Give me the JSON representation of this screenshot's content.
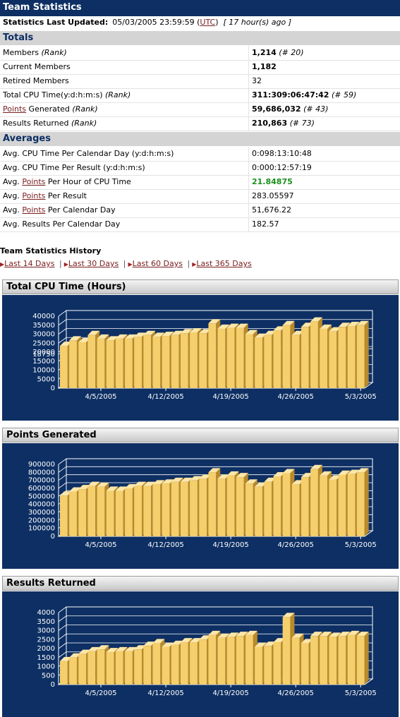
{
  "header": {
    "title": "Team Statistics"
  },
  "last_updated": {
    "label": "Statistics Last Updated:",
    "datetime": "05/03/2005 23:59:59",
    "tz_open": "(",
    "tz_link": "UTC",
    "tz_close": ")",
    "ago": "[ 17 hour(s) ago ]"
  },
  "totals": {
    "heading": "Totals",
    "rows": [
      {
        "label": "Members",
        "label_suffix": "(Rank)",
        "value": "1,214",
        "rank": "(# 20)"
      },
      {
        "label": "Current Members",
        "value": "1,182"
      },
      {
        "label": "Retired Members",
        "value": "32"
      },
      {
        "label": "Total CPU Time(y:d:h:m:s)",
        "label_suffix": "(Rank)",
        "value": "311:309:06:47:42",
        "rank": "(# 59)"
      },
      {
        "link": "Points",
        "label": " Generated",
        "label_suffix": "(Rank)",
        "value": "59,686,032",
        "rank": "(# 43)"
      },
      {
        "label": "Results Returned",
        "label_suffix": "(Rank)",
        "value": "210,863",
        "rank": "(# 73)"
      }
    ]
  },
  "averages": {
    "heading": "Averages",
    "rows": [
      {
        "label": "Avg. CPU Time Per Calendar Day (y:d:h:m:s)",
        "value": "0:098:13:10:48"
      },
      {
        "label": "Avg. CPU Time Per Result (y:d:h:m:s)",
        "value": "0:000:12:57:19"
      },
      {
        "pre": "Avg. ",
        "link": "Points",
        "post": " Per Hour of CPU Time",
        "value": "21.84875"
      },
      {
        "pre": "Avg. ",
        "link": "Points",
        "post": " Per Result",
        "value": "283.05597"
      },
      {
        "pre": "Avg. ",
        "link": "Points",
        "post": " Per Calendar Day",
        "value": "51,676.22"
      },
      {
        "label": "Avg. Results Per Calendar Day",
        "value": "182.57"
      }
    ]
  },
  "history": {
    "title": "Team Statistics History",
    "periods": [
      "Last 14 Days",
      "Last 30 Days",
      "Last 60 Days",
      "Last 365 Days"
    ],
    "separator": "|"
  },
  "colors": {
    "navy": "#0d2f63",
    "bar": "#f5cf6c",
    "bar_side": "#b98a2a",
    "bar_top": "#fde6a8",
    "link": "#7a2020",
    "highlight": "#1b8f1b"
  },
  "chart_data": [
    {
      "type": "bar",
      "title": "Total CPU Time (Hours)",
      "x": [
        "4/1/2005",
        "4/2/2005",
        "4/3/2005",
        "4/4/2005",
        "4/5/2005",
        "4/6/2005",
        "4/7/2005",
        "4/8/2005",
        "4/9/2005",
        "4/10/2005",
        "4/11/2005",
        "4/12/2005",
        "4/13/2005",
        "4/14/2005",
        "4/15/2005",
        "4/16/2005",
        "4/17/2005",
        "4/18/2005",
        "4/19/2005",
        "4/20/2005",
        "4/21/2005",
        "4/22/2005",
        "4/23/2005",
        "4/24/2005",
        "4/25/2005",
        "4/26/2005",
        "4/27/2005",
        "4/28/2005",
        "4/29/2005",
        "4/30/2005",
        "5/1/2005",
        "5/2/2005",
        "5/3/2005"
      ],
      "tick_labels": [
        "4/5/2005",
        "4/12/2005",
        "4/19/2005",
        "4/26/2005",
        "5/3/2005"
      ],
      "tick_indices": [
        4,
        11,
        18,
        25,
        32
      ],
      "values": [
        23500,
        26500,
        25500,
        29500,
        27500,
        26500,
        27500,
        27500,
        28500,
        29500,
        28500,
        29000,
        29500,
        30500,
        31000,
        30500,
        36000,
        33000,
        33500,
        33500,
        30000,
        28000,
        29500,
        32000,
        35000,
        29500,
        34000,
        37000,
        33000,
        31500,
        34000,
        34500,
        35000
      ],
      "y_ticks": [
        0,
        5000,
        10000,
        15000,
        18750,
        20000,
        25000,
        30000,
        35000,
        40000
      ],
      "ylim": [
        0,
        40000
      ],
      "grid": true,
      "legend": "none"
    },
    {
      "type": "bar",
      "title": "Points Generated",
      "x": [
        "4/1/2005",
        "4/2/2005",
        "4/3/2005",
        "4/4/2005",
        "4/5/2005",
        "4/6/2005",
        "4/7/2005",
        "4/8/2005",
        "4/9/2005",
        "4/10/2005",
        "4/11/2005",
        "4/12/2005",
        "4/13/2005",
        "4/14/2005",
        "4/15/2005",
        "4/16/2005",
        "4/17/2005",
        "4/18/2005",
        "4/19/2005",
        "4/20/2005",
        "4/21/2005",
        "4/22/2005",
        "4/23/2005",
        "4/24/2005",
        "4/25/2005",
        "4/26/2005",
        "4/27/2005",
        "4/28/2005",
        "4/29/2005",
        "4/30/2005",
        "5/1/2005",
        "5/2/2005",
        "5/3/2005"
      ],
      "tick_labels": [
        "4/5/2005",
        "4/12/2005",
        "4/19/2005",
        "4/26/2005",
        "5/3/2005"
      ],
      "tick_indices": [
        4,
        11,
        18,
        25,
        32
      ],
      "values": [
        510000,
        560000,
        590000,
        630000,
        620000,
        570000,
        570000,
        600000,
        630000,
        630000,
        650000,
        660000,
        680000,
        680000,
        700000,
        720000,
        800000,
        720000,
        760000,
        740000,
        660000,
        620000,
        680000,
        750000,
        790000,
        650000,
        740000,
        840000,
        760000,
        710000,
        770000,
        780000,
        800000
      ],
      "y_ticks": [
        0,
        100000,
        200000,
        300000,
        400000,
        500000,
        600000,
        700000,
        800000,
        900000
      ],
      "ylim": [
        0,
        900000
      ],
      "grid": true,
      "legend": "none"
    },
    {
      "type": "bar",
      "title": "Results Returned",
      "x": [
        "4/1/2005",
        "4/2/2005",
        "4/3/2005",
        "4/4/2005",
        "4/5/2005",
        "4/6/2005",
        "4/7/2005",
        "4/8/2005",
        "4/9/2005",
        "4/10/2005",
        "4/11/2005",
        "4/12/2005",
        "4/13/2005",
        "4/14/2005",
        "4/15/2005",
        "4/16/2005",
        "4/17/2005",
        "4/18/2005",
        "4/19/2005",
        "4/20/2005",
        "4/21/2005",
        "4/22/2005",
        "4/23/2005",
        "4/24/2005",
        "4/25/2005",
        "4/26/2005",
        "4/27/2005",
        "4/28/2005",
        "4/29/2005",
        "4/30/2005",
        "5/1/2005",
        "5/2/2005",
        "5/3/2005"
      ],
      "tick_labels": [
        "4/5/2005",
        "4/12/2005",
        "4/19/2005",
        "4/26/2005",
        "5/3/2005"
      ],
      "tick_indices": [
        4,
        11,
        18,
        25,
        32
      ],
      "values": [
        1300,
        1500,
        1700,
        1850,
        1950,
        1800,
        1850,
        1850,
        1950,
        2150,
        2300,
        2100,
        2200,
        2350,
        2350,
        2500,
        2750,
        2600,
        2650,
        2700,
        2750,
        2100,
        2150,
        2350,
        3750,
        2600,
        2300,
        2700,
        2700,
        2650,
        2700,
        2750,
        2700
      ],
      "y_ticks": [
        0,
        500,
        1000,
        1500,
        2000,
        2500,
        3000,
        3500,
        4000
      ],
      "ylim": [
        0,
        4000
      ],
      "grid": true,
      "legend": "none"
    }
  ]
}
